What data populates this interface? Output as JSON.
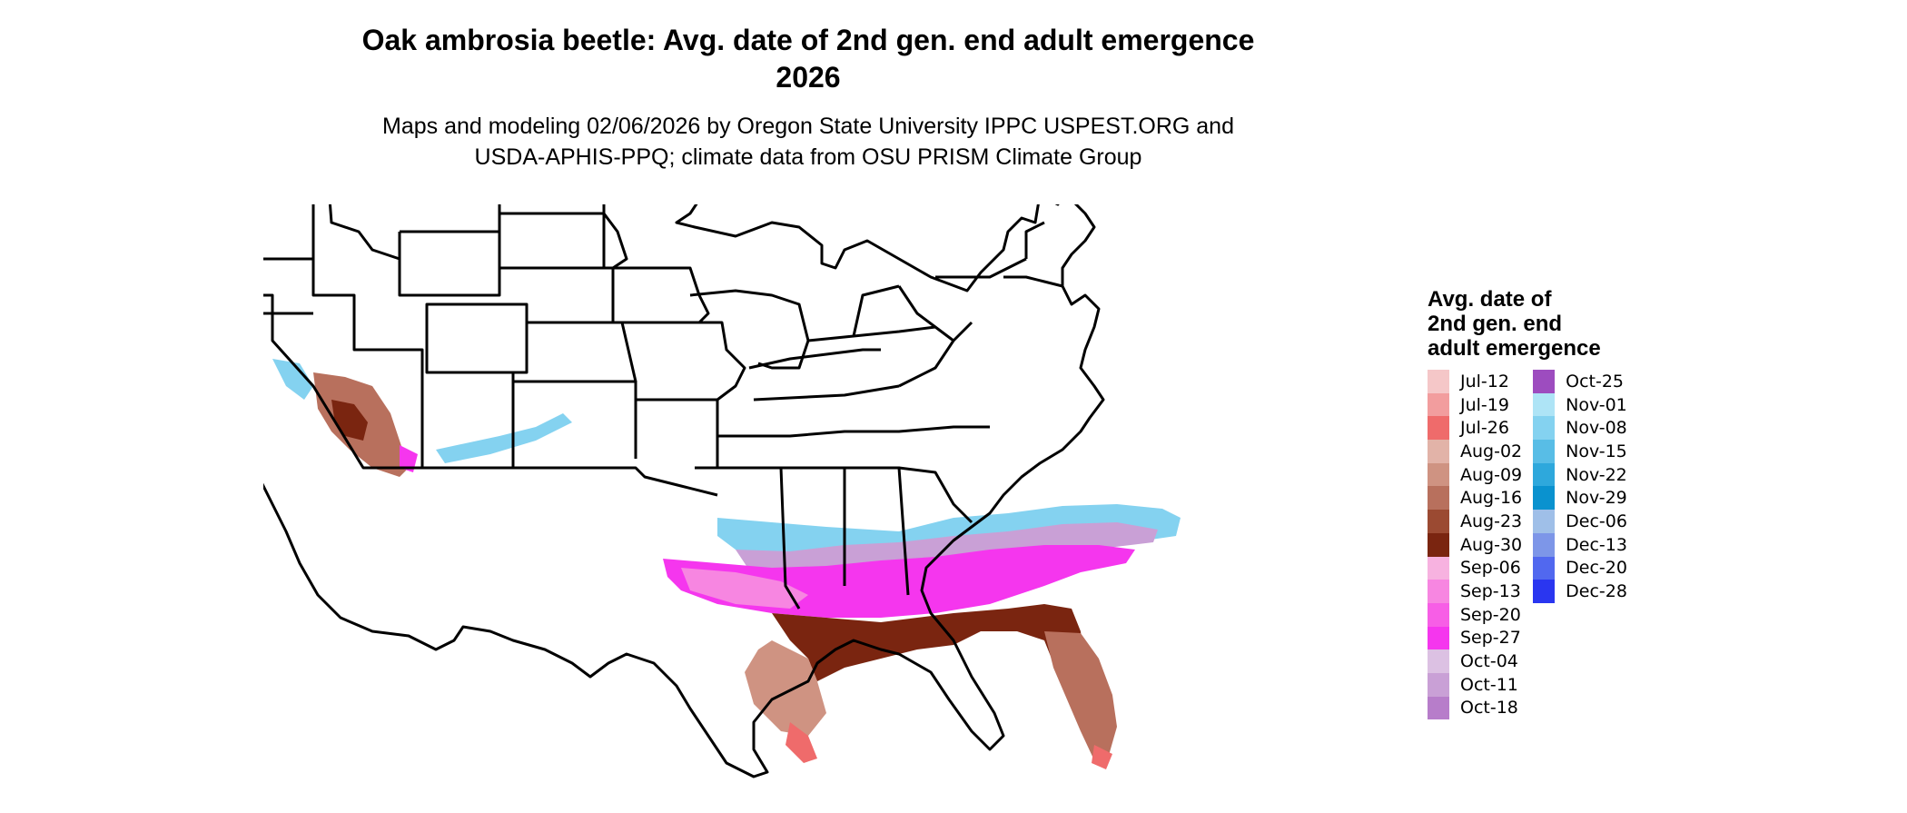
{
  "title_line1": "Oak ambrosia beetle: Avg. date of 2nd gen. end adult emergence",
  "title_line2": "2026",
  "subtitle_line1": "Maps and modeling 02/06/2026 by Oregon State University IPPC USPEST.ORG and",
  "subtitle_line2": "USDA-APHIS-PPQ; climate data from OSU PRISM Climate Group",
  "legend": {
    "title_line1": "Avg. date of",
    "title_line2": "2nd gen. end",
    "title_line3": "adult emergence",
    "col1": [
      {
        "label": "Jul-12",
        "color": "#f5c7c8"
      },
      {
        "label": "Jul-19",
        "color": "#f29d9e"
      },
      {
        "label": "Jul-26",
        "color": "#ef6b6b"
      },
      {
        "label": "Aug-02",
        "color": "#e2b3a8"
      },
      {
        "label": "Aug-09",
        "color": "#cf9382"
      },
      {
        "label": "Aug-16",
        "color": "#b8705d"
      },
      {
        "label": "Aug-23",
        "color": "#9b4a32"
      },
      {
        "label": "Aug-30",
        "color": "#7a2510"
      },
      {
        "label": "Sep-06",
        "color": "#f7b2e0"
      },
      {
        "label": "Sep-13",
        "color": "#f786e1"
      },
      {
        "label": "Sep-20",
        "color": "#f75ee6"
      },
      {
        "label": "Sep-27",
        "color": "#f536ee"
      },
      {
        "label": "Oct-04",
        "color": "#dcc1e3"
      },
      {
        "label": "Oct-11",
        "color": "#c9a0d6"
      },
      {
        "label": "Oct-18",
        "color": "#b77dca"
      }
    ],
    "col2": [
      {
        "label": "Oct-25",
        "color": "#9d4cbf"
      },
      {
        "label": "Nov-01",
        "color": "#aee4f6"
      },
      {
        "label": "Nov-08",
        "color": "#84d2f0"
      },
      {
        "label": "Nov-15",
        "color": "#58bde6"
      },
      {
        "label": "Nov-22",
        "color": "#2ea8dc"
      },
      {
        "label": "Nov-29",
        "color": "#0a92cf"
      },
      {
        "label": "Dec-06",
        "color": "#9fbfe8"
      },
      {
        "label": "Dec-13",
        "color": "#7d96e8"
      },
      {
        "label": "Dec-20",
        "color": "#5168ef"
      },
      {
        "label": "Dec-28",
        "color": "#2a36f0"
      }
    ]
  }
}
